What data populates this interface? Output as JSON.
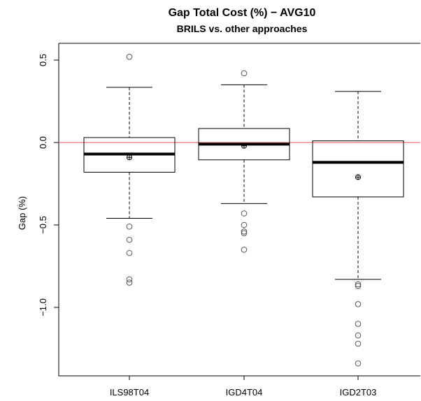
{
  "chart_data": {
    "type": "boxplot",
    "title": "Gap Total Cost (%) − AVG10",
    "subtitle": "BRILS vs. other approaches",
    "xlabel": "",
    "ylabel": "Gap (%)",
    "ylim": [
      -1.4,
      0.6
    ],
    "yticks": [
      0.5,
      0.0,
      -0.5,
      -1.0
    ],
    "ytick_labels": [
      "0.5",
      "0.0",
      "−0.5",
      "−1.0"
    ],
    "reference_line": {
      "y": 0.0,
      "color": "#e8737f"
    },
    "categories": [
      "ILS98T04",
      "IGD4T04",
      "IGD2T03"
    ],
    "boxes": [
      {
        "name": "ILS98T04",
        "whisker_low": -0.46,
        "q1": -0.18,
        "median": -0.07,
        "q3": 0.03,
        "whisker_high": 0.335,
        "mean": -0.09,
        "outliers": [
          0.52,
          -0.51,
          -0.59,
          -0.67,
          -0.83,
          -0.85
        ]
      },
      {
        "name": "IGD4T04",
        "whisker_low": -0.37,
        "q1": -0.105,
        "median": -0.01,
        "q3": 0.085,
        "whisker_high": 0.35,
        "mean": -0.02,
        "outliers": [
          0.42,
          -0.43,
          -0.5,
          -0.54,
          -0.55,
          -0.65
        ]
      },
      {
        "name": "IGD2T03",
        "whisker_low": -0.83,
        "q1": -0.33,
        "median": -0.12,
        "q3": 0.01,
        "whisker_high": 0.31,
        "mean": -0.21,
        "outliers": [
          -0.86,
          -0.87,
          -0.98,
          -1.1,
          -1.17,
          -1.22,
          -1.34
        ]
      }
    ]
  }
}
